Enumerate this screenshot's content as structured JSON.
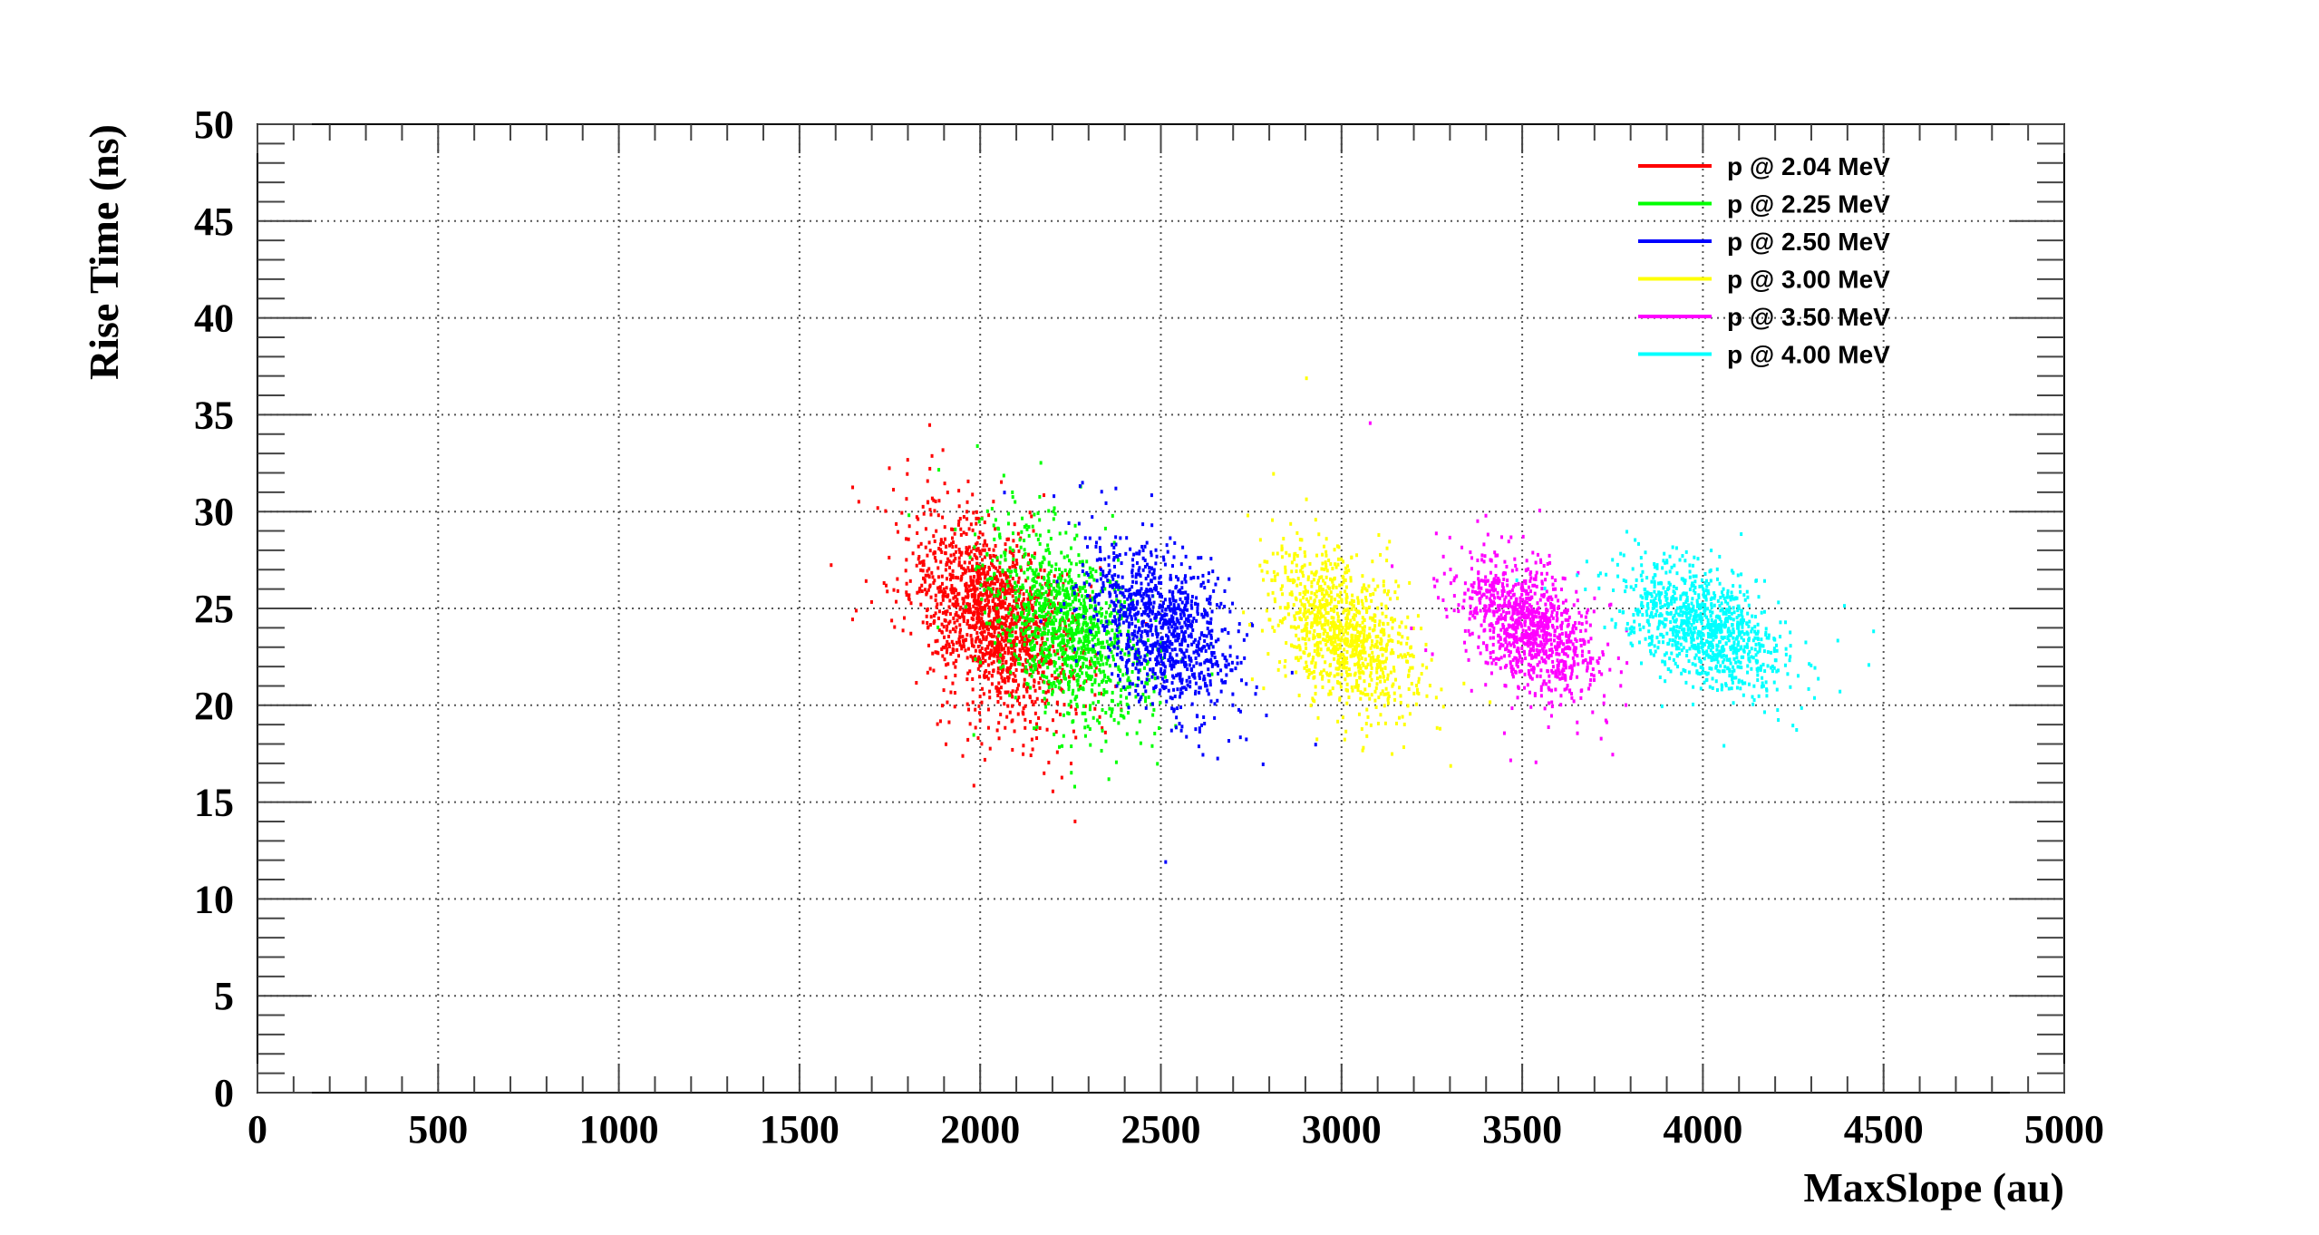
{
  "chart_data": {
    "type": "scatter",
    "title": "",
    "xlabel": "MaxSlope (au)",
    "ylabel": "Rise Time (ns)",
    "xlim": [
      0,
      5000
    ],
    "ylim": [
      0,
      50
    ],
    "x_ticks": [
      "0",
      "500",
      "1000",
      "1500",
      "2000",
      "2500",
      "3000",
      "3500",
      "4000",
      "4500",
      "5000"
    ],
    "y_ticks": [
      "0",
      "5",
      "10",
      "15",
      "20",
      "25",
      "30",
      "35",
      "40",
      "45",
      "50"
    ],
    "grid": true,
    "legend_placement": "top-right",
    "series": [
      {
        "name": "p @ 2.04 MeV",
        "color": "#ff0000",
        "center": [
          2030,
          24.5
        ],
        "std": [
          110,
          2.6
        ],
        "correlation": -0.45,
        "count": 1500
      },
      {
        "name": "p @ 2.25 MeV",
        "color": "#00ff00",
        "center": [
          2240,
          24.0
        ],
        "std": [
          105,
          2.4
        ],
        "correlation": -0.45,
        "count": 1100
      },
      {
        "name": "p @ 2.50 MeV",
        "color": "#0000ff",
        "center": [
          2500,
          24.0
        ],
        "std": [
          100,
          2.2
        ],
        "correlation": -0.45,
        "count": 1000
      },
      {
        "name": "p @ 3.00 MeV",
        "color": "#ffff00",
        "center": [
          3000,
          23.8
        ],
        "std": [
          95,
          2.0
        ],
        "correlation": -0.45,
        "count": 1000
      },
      {
        "name": "p @ 3.50 MeV",
        "color": "#ff00ff",
        "center": [
          3520,
          24.0
        ],
        "std": [
          90,
          1.7
        ],
        "correlation": -0.45,
        "count": 1000
      },
      {
        "name": "p @ 4.00 MeV",
        "color": "#00ffff",
        "center": [
          4010,
          24.0
        ],
        "std": [
          110,
          1.6
        ],
        "correlation": -0.45,
        "count": 1000
      }
    ]
  }
}
